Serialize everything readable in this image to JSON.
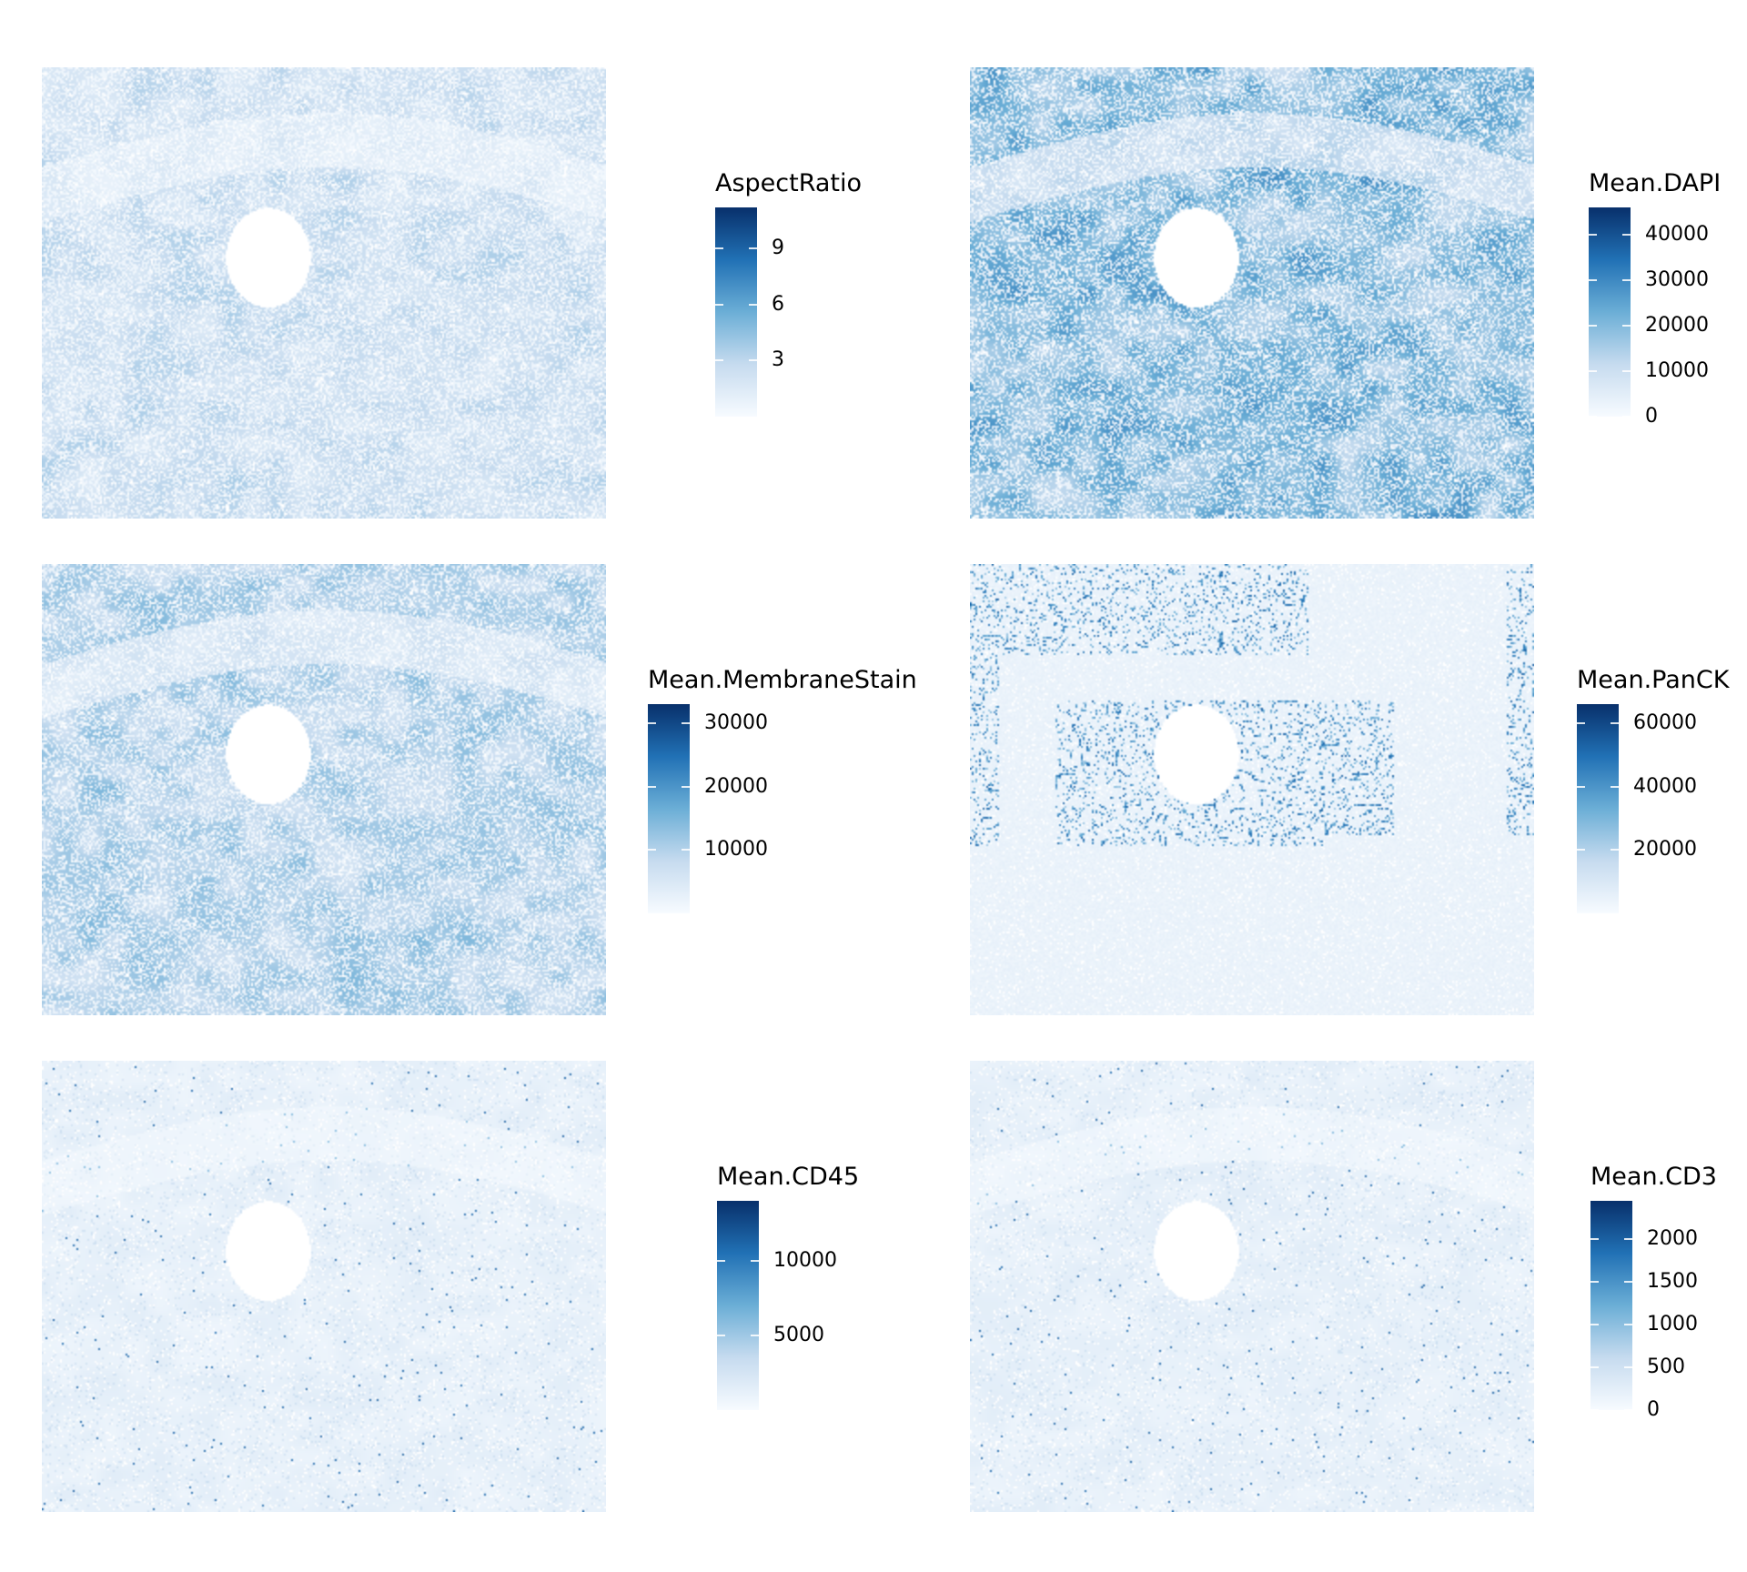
{
  "figure": {
    "panels": [
      {
        "id": "aspect-ratio",
        "legend_title": "AspectRatio",
        "range": [
          0,
          11.2
        ],
        "ticks": [
          3,
          6,
          9
        ],
        "tick_labels": [
          "3",
          "6",
          "9"
        ],
        "intensity": 0.18,
        "pattern": "uniform"
      },
      {
        "id": "mean-dapi",
        "legend_title": "Mean.DAPI",
        "range": [
          0,
          46000
        ],
        "ticks": [
          0,
          10000,
          20000,
          30000,
          40000
        ],
        "tick_labels": [
          "0",
          "10000",
          "20000",
          "30000",
          "40000"
        ],
        "intensity": 0.32,
        "pattern": "tissue"
      },
      {
        "id": "mean-membranestain",
        "legend_title": "Mean.MembraneStain",
        "range": [
          0,
          33000
        ],
        "ticks": [
          10000,
          20000,
          30000
        ],
        "tick_labels": [
          "10000",
          "20000",
          "30000"
        ],
        "intensity": 0.22,
        "pattern": "tissue"
      },
      {
        "id": "mean-panck",
        "legend_title": "Mean.PanCK",
        "range": [
          0,
          66000
        ],
        "ticks": [
          20000,
          40000,
          60000
        ],
        "tick_labels": [
          "20000",
          "40000",
          "60000"
        ],
        "intensity": 0.55,
        "pattern": "glands"
      },
      {
        "id": "mean-cd45",
        "legend_title": "Mean.CD45",
        "range": [
          0,
          14000
        ],
        "ticks": [
          5000,
          10000
        ],
        "tick_labels": [
          "5000",
          "10000"
        ],
        "intensity": 0.14,
        "pattern": "sparse"
      },
      {
        "id": "mean-cd3",
        "legend_title": "Mean.CD3",
        "range": [
          0,
          2450
        ],
        "ticks": [
          0,
          500,
          1000,
          1500,
          2000
        ],
        "tick_labels": [
          "0",
          "500",
          "1000",
          "1500",
          "2000"
        ],
        "intensity": 0.16,
        "pattern": "sparse"
      }
    ]
  },
  "chart_data": [
    {
      "type": "heatmap",
      "title": "",
      "legend_title": "AspectRatio",
      "scale_range": [
        0,
        11.2
      ],
      "scale_ticks": [
        3,
        6,
        9
      ],
      "palette": [
        "#f7fbff",
        "#c6dbef",
        "#6baed6",
        "#2171b5",
        "#08306b"
      ]
    },
    {
      "type": "heatmap",
      "title": "",
      "legend_title": "Mean.DAPI",
      "scale_range": [
        0,
        46000
      ],
      "scale_ticks": [
        0,
        10000,
        20000,
        30000,
        40000
      ],
      "palette": [
        "#f7fbff",
        "#c6dbef",
        "#6baed6",
        "#2171b5",
        "#08306b"
      ]
    },
    {
      "type": "heatmap",
      "title": "",
      "legend_title": "Mean.MembraneStain",
      "scale_range": [
        0,
        33000
      ],
      "scale_ticks": [
        10000,
        20000,
        30000
      ],
      "palette": [
        "#f7fbff",
        "#c6dbef",
        "#6baed6",
        "#2171b5",
        "#08306b"
      ]
    },
    {
      "type": "heatmap",
      "title": "",
      "legend_title": "Mean.PanCK",
      "scale_range": [
        0,
        66000
      ],
      "scale_ticks": [
        20000,
        40000,
        60000
      ],
      "palette": [
        "#f7fbff",
        "#c6dbef",
        "#6baed6",
        "#2171b5",
        "#08306b"
      ]
    },
    {
      "type": "heatmap",
      "title": "",
      "legend_title": "Mean.CD45",
      "scale_range": [
        0,
        14000
      ],
      "scale_ticks": [
        5000,
        10000
      ],
      "palette": [
        "#f7fbff",
        "#c6dbef",
        "#6baed6",
        "#2171b5",
        "#08306b"
      ]
    },
    {
      "type": "heatmap",
      "title": "",
      "legend_title": "Mean.CD3",
      "scale_range": [
        0,
        2450
      ],
      "scale_ticks": [
        0,
        500,
        1000,
        1500,
        2000
      ],
      "palette": [
        "#f7fbff",
        "#c6dbef",
        "#6baed6",
        "#2171b5",
        "#08306b"
      ]
    }
  ]
}
